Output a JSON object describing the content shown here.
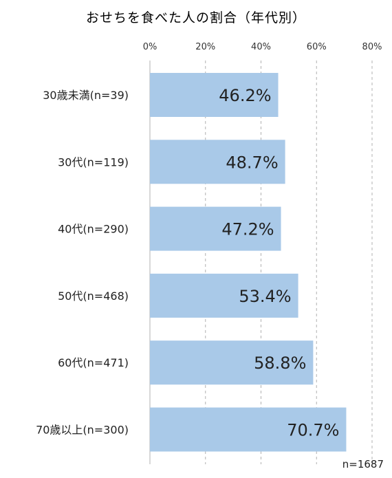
{
  "chart_data": {
    "type": "bar",
    "orientation": "horizontal",
    "title": "おせちを食べた人の割合（年代別）",
    "categories": [
      "30歳未満(n=39)",
      "30代(n=119)",
      "40代(n=290)",
      "50代(n=468)",
      "60代(n=471)",
      "70歳以上(n=300)"
    ],
    "values": [
      46.2,
      48.7,
      47.2,
      53.4,
      58.8,
      70.7
    ],
    "value_labels": [
      "46.2%",
      "48.7%",
      "47.2%",
      "53.4%",
      "58.8%",
      "70.7%"
    ],
    "xlim": [
      0,
      80
    ],
    "ticks": [
      0,
      20,
      40,
      60,
      80
    ],
    "tick_labels": [
      "0%",
      "20%",
      "40%",
      "60%",
      "80%"
    ],
    "grid": "vertical dashed",
    "note": "n=1687",
    "bar_color": "#a9c9e8",
    "grid_color": "#b0b0b0"
  }
}
